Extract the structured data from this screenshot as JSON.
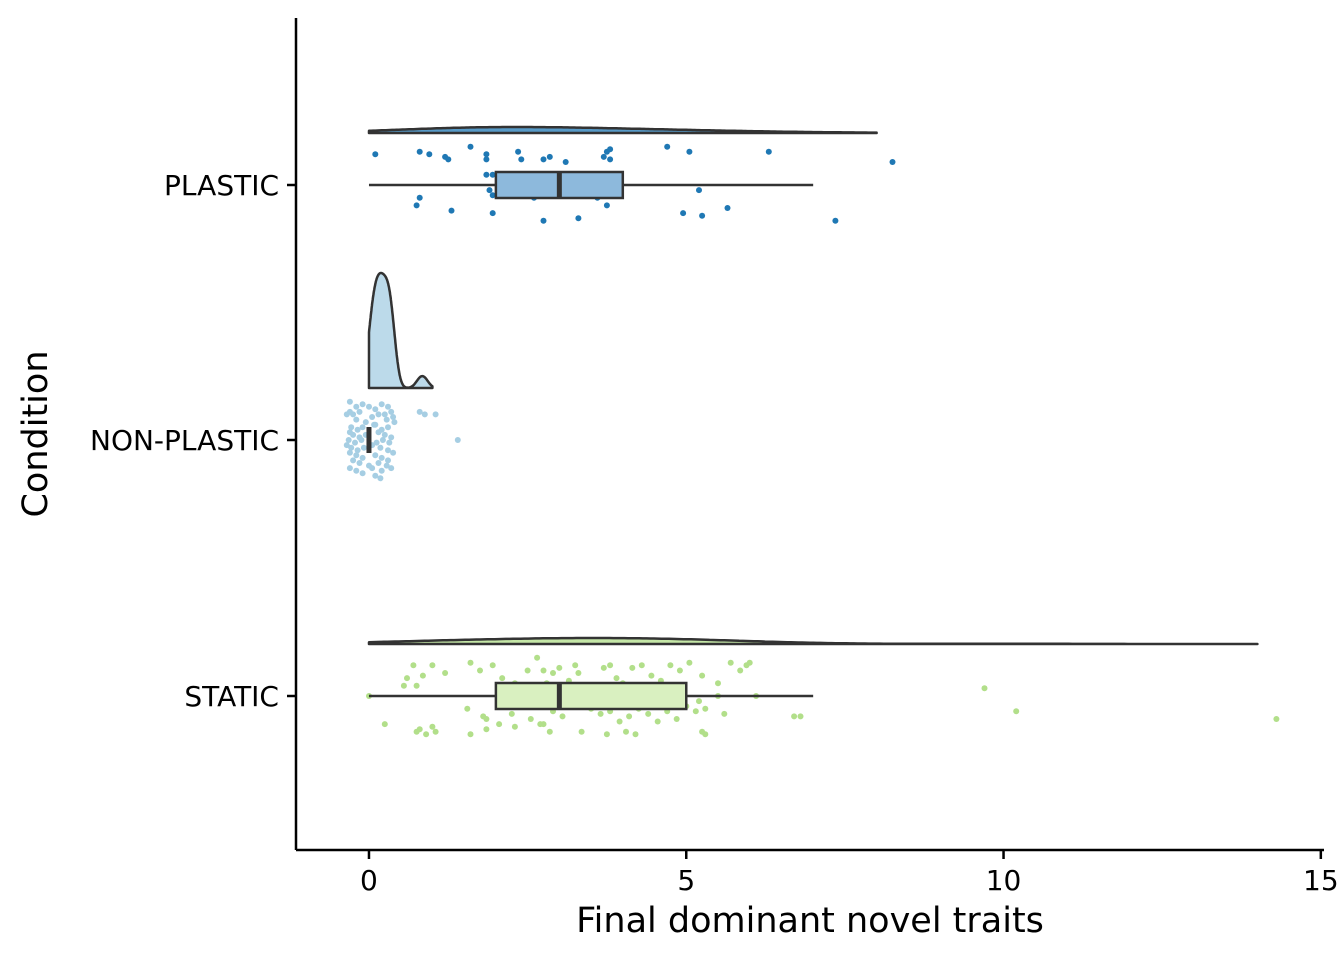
{
  "chart_data": {
    "type": "raincloud",
    "orientation": "horizontal",
    "xlabel": "Final dominant novel traits",
    "ylabel": "Condition",
    "xlim": [
      -1.15,
      15.05
    ],
    "xticks": [
      0,
      5,
      10,
      15
    ],
    "xtick_labels": [
      "0",
      "5",
      "10",
      "15"
    ],
    "categories": [
      "PLASTIC",
      "NON-PLASTIC",
      "STATIC"
    ],
    "legend": "none",
    "grid": false,
    "groups": [
      {
        "name": "PLASTIC",
        "color": "#1f78b4",
        "box_fill": "#8db9dc",
        "box": {
          "whisker_low": 0,
          "q1": 2,
          "median": 3,
          "q3": 4,
          "whisker_high": 7
        },
        "density_range": [
          0,
          8
        ],
        "points": [
          0.1,
          0.8,
          0.95,
          1.2,
          1.6,
          1.85,
          2.35,
          2.85,
          3.75,
          3.8,
          4.7,
          5.05,
          6.3,
          8.25,
          1.25,
          1.85,
          1.95,
          2.4,
          2.75,
          3.1,
          3.7,
          3.8,
          0.8,
          1.9,
          1.95,
          2.6,
          3.6,
          5.2,
          1.85,
          3.75,
          0.75,
          1.3,
          1.95,
          3.75,
          4.95,
          5.65,
          2.75,
          3.3,
          5.25,
          7.35
        ],
        "jitter": [
          -0.12,
          -0.13,
          -0.12,
          -0.11,
          -0.15,
          -0.12,
          -0.13,
          -0.11,
          -0.13,
          -0.14,
          -0.15,
          -0.13,
          -0.13,
          -0.09,
          -0.1,
          -0.1,
          -0.04,
          -0.1,
          -0.1,
          -0.09,
          -0.11,
          -0.1,
          0.05,
          0.02,
          0.04,
          0.05,
          0.05,
          0.02,
          -0.04,
          -0.04,
          0.08,
          0.1,
          0.11,
          0.08,
          0.11,
          0.09,
          0.14,
          0.13,
          0.12,
          0.14
        ]
      },
      {
        "name": "NON-PLASTIC",
        "color": "#a6cee3",
        "box_fill": "#a6cee3",
        "box": {
          "whisker_low": 0,
          "q1": 0,
          "median": 0,
          "q3": 0,
          "whisker_high": 0
        },
        "density_range": [
          0,
          1
        ],
        "points": [
          0.8,
          1.05,
          0.88,
          1.4,
          -0.3,
          -0.2,
          -0.1,
          0.0,
          0.1,
          0.2,
          0.3,
          0.35,
          -0.3,
          -0.25,
          -0.15,
          0.05,
          0.15,
          0.25,
          0.38,
          -0.35,
          -0.2,
          -0.05,
          0.1,
          0.28,
          0.4,
          -0.28,
          -0.18,
          -0.1,
          0.08,
          0.2,
          0.3,
          -0.3,
          -0.25,
          -0.15,
          -0.05,
          0.15,
          0.25,
          0.35,
          -0.32,
          -0.22,
          -0.12,
          0.02,
          0.12,
          0.22,
          0.32,
          -0.35,
          -0.28,
          -0.18,
          -0.08,
          0.05,
          0.18,
          0.3,
          0.38,
          -0.3,
          -0.2,
          -0.1,
          0.1,
          0.2,
          0.3,
          -0.25,
          -0.15,
          0.0,
          0.15,
          0.28,
          -0.3,
          -0.2,
          0.05,
          0.2,
          0.35,
          -0.1,
          0.1,
          0.18
        ],
        "jitter": [
          -0.11,
          -0.1,
          -0.1,
          0.0,
          -0.15,
          -0.13,
          -0.14,
          -0.13,
          -0.12,
          -0.14,
          -0.13,
          -0.11,
          -0.11,
          -0.1,
          -0.11,
          -0.09,
          -0.1,
          -0.1,
          -0.09,
          -0.1,
          -0.08,
          -0.07,
          -0.06,
          -0.08,
          -0.07,
          -0.05,
          -0.04,
          -0.05,
          -0.06,
          -0.04,
          -0.05,
          -0.03,
          -0.02,
          -0.01,
          -0.02,
          -0.03,
          -0.02,
          -0.01,
          0.0,
          0.01,
          0.0,
          0.02,
          0.01,
          0.0,
          0.01,
          0.02,
          0.03,
          0.04,
          0.03,
          0.02,
          0.03,
          0.04,
          0.05,
          0.05,
          0.06,
          0.07,
          0.06,
          0.07,
          0.08,
          0.08,
          0.09,
          0.1,
          0.09,
          0.1,
          0.11,
          0.12,
          0.11,
          0.12,
          0.11,
          0.13,
          0.14,
          0.15
        ]
      },
      {
        "name": "STATIC",
        "color": "#b2df8a",
        "box_fill": "#d9f0c0",
        "box": {
          "whisker_low": 0,
          "q1": 2,
          "median": 3,
          "q3": 5,
          "whisker_high": 7
        },
        "density_range": [
          0,
          14
        ],
        "points": [
          0.0,
          0.6,
          0.7,
          0.85,
          1.0,
          0.55,
          0.75,
          1.2,
          1.6,
          1.75,
          1.95,
          2.1,
          2.3,
          2.5,
          2.65,
          2.75,
          2.8,
          2.9,
          3.0,
          3.15,
          3.25,
          3.3,
          3.55,
          3.7,
          3.8,
          3.9,
          4.0,
          4.15,
          4.3,
          4.45,
          4.6,
          4.75,
          4.9,
          5.05,
          5.25,
          5.5,
          5.7,
          5.85,
          5.95,
          6.0,
          2.7,
          2.95,
          3.4,
          3.6,
          4.05,
          4.5,
          4.85,
          5.2,
          5.5,
          6.1,
          9.7,
          10.2,
          14.3,
          0.25,
          0.8,
          1.0,
          1.55,
          1.8,
          2.05,
          2.25,
          2.4,
          2.55,
          2.7,
          2.9,
          3.05,
          3.2,
          3.5,
          3.65,
          3.8,
          3.95,
          4.1,
          4.25,
          4.4,
          4.55,
          4.7,
          4.85,
          5.0,
          5.15,
          5.3,
          5.6,
          6.7,
          6.8,
          0.75,
          0.9,
          1.05,
          1.6,
          1.85,
          2.3,
          2.85,
          3.35,
          3.75,
          4.05,
          4.2,
          5.25,
          5.3,
          2.75,
          1.85
        ],
        "jitter": [
          0.0,
          -0.07,
          -0.12,
          -0.08,
          -0.12,
          -0.04,
          -0.04,
          -0.09,
          -0.13,
          -0.1,
          -0.12,
          -0.07,
          -0.05,
          -0.1,
          -0.15,
          -0.1,
          -0.05,
          -0.09,
          -0.11,
          -0.06,
          -0.12,
          -0.09,
          -0.04,
          -0.11,
          -0.12,
          -0.07,
          -0.05,
          -0.11,
          -0.12,
          -0.08,
          -0.06,
          -0.12,
          -0.1,
          -0.13,
          -0.08,
          -0.05,
          -0.13,
          -0.1,
          -0.12,
          -0.13,
          0.0,
          -0.03,
          0.04,
          0.0,
          -0.01,
          0.03,
          0.0,
          0.02,
          0.0,
          0.0,
          -0.03,
          0.06,
          0.09,
          0.11,
          0.13,
          0.12,
          0.05,
          0.08,
          0.11,
          0.07,
          0.04,
          0.09,
          0.11,
          0.06,
          0.08,
          0.04,
          0.05,
          0.07,
          0.06,
          0.1,
          0.08,
          0.05,
          0.07,
          0.1,
          0.06,
          0.09,
          0.04,
          0.06,
          0.05,
          0.07,
          0.08,
          0.08,
          0.14,
          0.15,
          0.14,
          0.15,
          0.13,
          0.12,
          0.14,
          0.14,
          0.15,
          0.14,
          0.15,
          0.14,
          0.15,
          0.11,
          0.09
        ]
      }
    ]
  }
}
